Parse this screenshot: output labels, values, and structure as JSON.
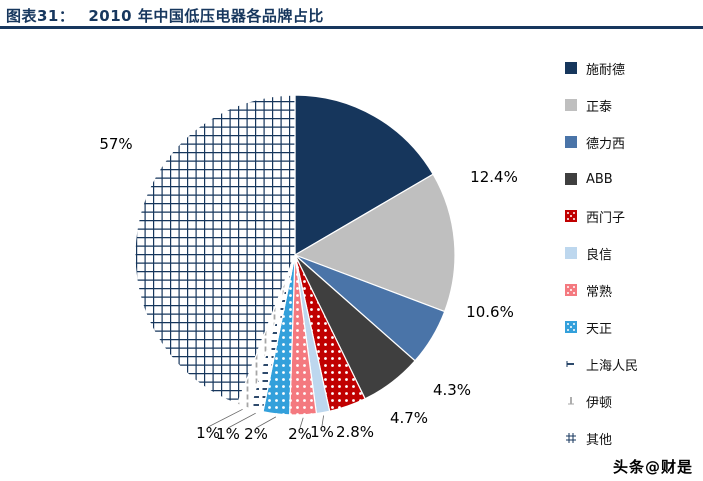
{
  "header": {
    "tag": "图表31：",
    "title": "2010 年中国低压电器各品牌占比"
  },
  "footer": {
    "watermark": "头条@财是"
  },
  "chart_data": {
    "type": "pie",
    "title": "2010 年中国低压电器各品牌占比",
    "legend_position": "right",
    "direction": "clockwise",
    "start_angle_deg": 0,
    "series": [
      {
        "name": "施耐德",
        "value": 12.4,
        "label": "12.4%",
        "color": "#16365C",
        "pattern": "solid"
      },
      {
        "name": "正泰",
        "value": 10.6,
        "label": "10.6%",
        "color": "#BFBFBF",
        "pattern": "solid"
      },
      {
        "name": "德力西",
        "value": 4.3,
        "label": "4.3%",
        "color": "#4A74A8",
        "pattern": "solid"
      },
      {
        "name": "ABB",
        "value": 4.7,
        "label": "4.7%",
        "color": "#3F3F3F",
        "pattern": "solid"
      },
      {
        "name": "西门子",
        "value": 2.8,
        "label": "2.8%",
        "color": "#C00000",
        "pattern": "dots"
      },
      {
        "name": "良信",
        "value": 1,
        "label": "1%",
        "color": "#BDD7EE",
        "pattern": "solid"
      },
      {
        "name": "常熟",
        "value": 2,
        "label": "2%",
        "color": "#F4797F",
        "pattern": "dots"
      },
      {
        "name": "天正",
        "value": 2,
        "label": "2%",
        "color": "#33A0DB",
        "pattern": "dots"
      },
      {
        "name": "上海人民",
        "value": 1,
        "label": "1%",
        "color": "#16365C",
        "pattern": "dash-h"
      },
      {
        "name": "伊顿",
        "value": 1,
        "label": "1%",
        "color": "#A6A6A6",
        "pattern": "dash-v"
      },
      {
        "name": "其他",
        "value": 57,
        "label": "57%",
        "color": "#16365C",
        "pattern": "grid"
      }
    ]
  }
}
